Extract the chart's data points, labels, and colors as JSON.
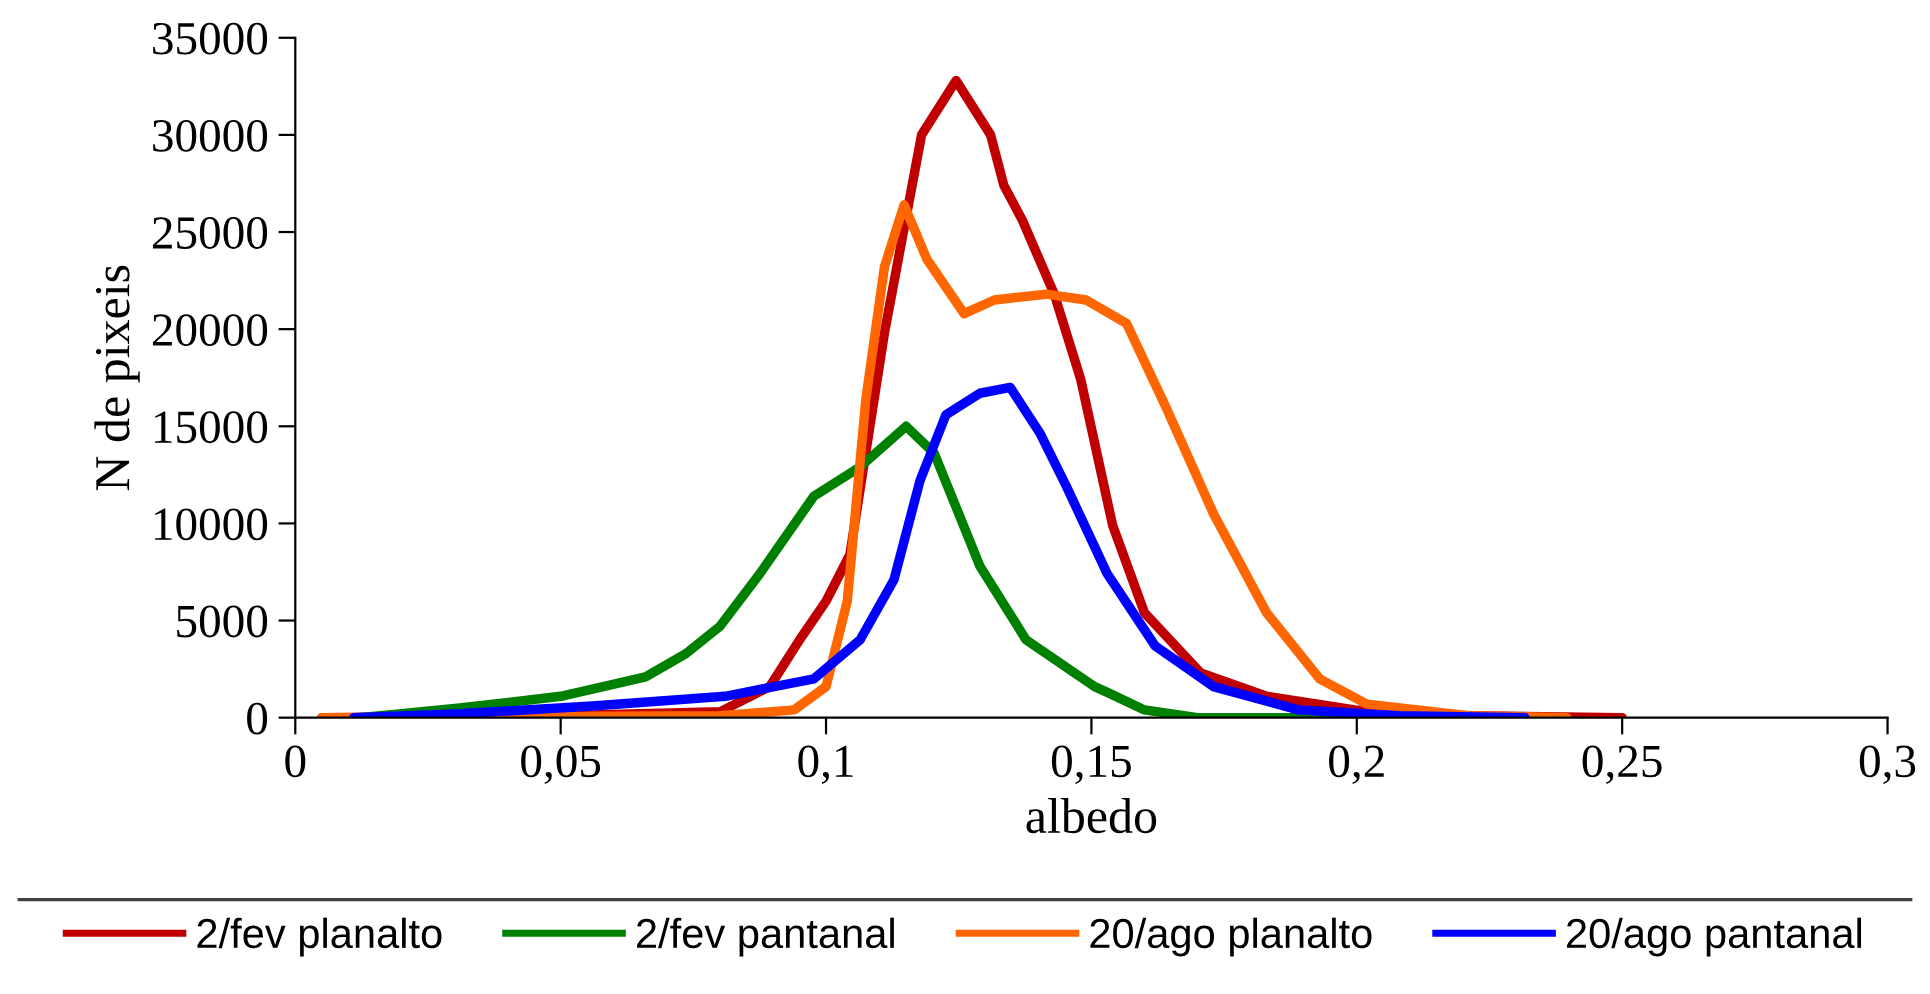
{
  "chart_data": {
    "type": "line",
    "xlabel": "albedo",
    "ylabel": "N de pixeis",
    "xlim": [
      0,
      0.3
    ],
    "xticks": [
      0,
      {
        "value": 0.05,
        "label": "0,05"
      },
      {
        "value": 0.1,
        "label": "0,1"
      },
      {
        "value": 0.15,
        "label": "0,15"
      },
      {
        "value": 0.2,
        "label": "0,2"
      },
      {
        "value": 0.25,
        "label": "0,25"
      },
      {
        "value": 0.3,
        "label": "0,3"
      }
    ],
    "ylim": [
      0,
      35000
    ],
    "yticks": [
      0,
      5000,
      10000,
      15000,
      20000,
      25000,
      30000,
      35000
    ],
    "grid": false,
    "legend": "bottom",
    "marker": "none",
    "line_style": "solid",
    "series": [
      {
        "name": "2/fev planalto",
        "color": "#c00000",
        "x": [
          0.005,
          0.05,
          0.08,
          0.0894,
          0.095,
          0.1,
          0.1045,
          0.111,
          0.118,
          0.1245,
          0.131,
          0.1335,
          0.137,
          0.143,
          0.148,
          0.154,
          0.16,
          0.1706,
          0.183,
          0.1996,
          0.221,
          0.25
        ],
        "values": [
          0,
          100,
          300,
          1600,
          4000,
          6000,
          8400,
          19800,
          30000,
          32800,
          30000,
          27400,
          25600,
          21800,
          17400,
          9900,
          5400,
          2300,
          1100,
          400,
          100,
          0
        ]
      },
      {
        "name": "2/fev pantanal",
        "color": "#008000",
        "x": [
          0.012,
          0.02,
          0.031,
          0.05,
          0.066,
          0.0736,
          0.08,
          0.0875,
          0.0977,
          0.1064,
          0.1151,
          0.1204,
          0.129,
          0.1377,
          0.1506,
          0.153,
          0.16,
          0.17,
          0.22
        ],
        "values": [
          0,
          200,
          500,
          1100,
          2100,
          3300,
          4700,
          7400,
          11400,
          12900,
          15000,
          13600,
          7800,
          4000,
          1600,
          1300,
          400,
          0,
          0
        ]
      },
      {
        "name": "20/ago planalto",
        "color": "#ff6600",
        "x": [
          0.005,
          0.08,
          0.094,
          0.1,
          0.104,
          0.1075,
          0.111,
          0.1147,
          0.119,
          0.126,
          0.1317,
          0.1415,
          0.149,
          0.1566,
          0.164,
          0.173,
          0.183,
          0.193,
          0.2019,
          0.221,
          0.2396
        ],
        "values": [
          0,
          100,
          400,
          1600,
          6000,
          16400,
          23200,
          26400,
          23600,
          20800,
          21500,
          21800,
          21500,
          20300,
          16000,
          10500,
          5400,
          2000,
          700,
          100,
          0
        ]
      },
      {
        "name": "20/ago pantanal",
        "color": "#0000ff",
        "x": [
          0.011,
          0.031,
          0.056,
          0.081,
          0.0977,
          0.1064,
          0.1128,
          0.1177,
          0.1226,
          0.129,
          0.1347,
          0.1404,
          0.1453,
          0.153,
          0.162,
          0.173,
          0.189,
          0.208,
          0.2317
        ],
        "values": [
          0,
          200,
          600,
          1100,
          2000,
          4000,
          7100,
          12200,
          15600,
          16700,
          17000,
          14600,
          11900,
          7400,
          3700,
          1600,
          400,
          100,
          0
        ]
      }
    ]
  }
}
